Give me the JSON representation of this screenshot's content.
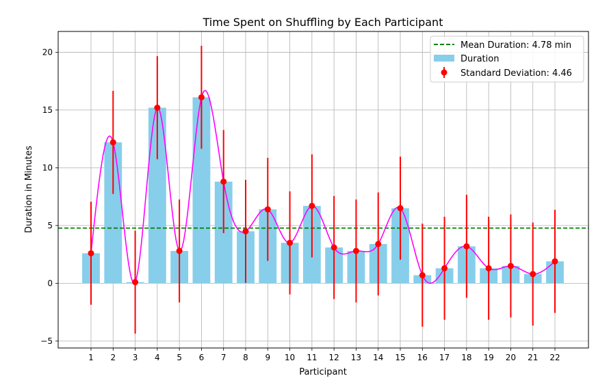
{
  "chart_data": {
    "type": "bar",
    "title": "Time Spent on Shuffling by Each Participant",
    "xlabel": "Participant",
    "ylabel": "Duration in Minutes",
    "categories": [
      "1",
      "2",
      "3",
      "4",
      "5",
      "6",
      "7",
      "8",
      "9",
      "10",
      "11",
      "12",
      "13",
      "14",
      "15",
      "16",
      "17",
      "18",
      "19",
      "20",
      "21",
      "22"
    ],
    "values": [
      2.6,
      12.2,
      0.1,
      15.2,
      2.8,
      16.1,
      8.8,
      4.5,
      6.4,
      3.5,
      6.7,
      3.1,
      2.8,
      3.4,
      6.5,
      0.7,
      1.3,
      3.2,
      1.3,
      1.5,
      0.8,
      1.9
    ],
    "error": 4.46,
    "mean": 4.78,
    "ylim": [
      -5.6,
      21.8
    ],
    "yticks": [
      -5,
      0,
      5,
      10,
      15,
      20
    ],
    "ytick_labels": [
      "−5",
      "0",
      "5",
      "10",
      "15",
      "20"
    ],
    "grid": true,
    "legend_position": "top-right",
    "legend": {
      "mean": "Mean Duration: 4.78 min",
      "bars": "Duration",
      "errors": "Standard Deviation: 4.46"
    },
    "colors": {
      "bar": "#87ceeb",
      "error": "#ff0000",
      "mean": "#008000",
      "curve": "#ff00ff",
      "grid": "#b0b0b0"
    }
  }
}
